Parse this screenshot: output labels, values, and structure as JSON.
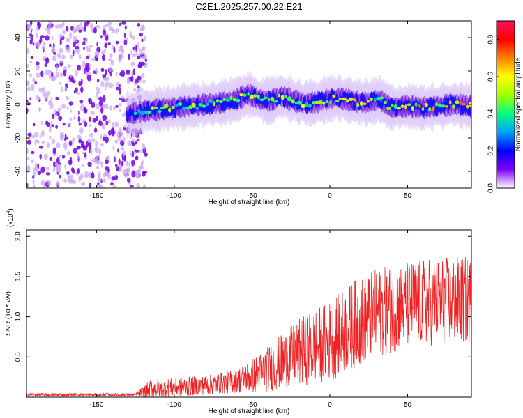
{
  "title": "C2E1.2025.257.00.22.E21",
  "chart_data": [
    {
      "type": "heatmap",
      "name": "spectrogram",
      "xlabel": "Height of straight line (km)",
      "ylabel": "Frequency (Hz)",
      "xlim": [
        -195,
        91
      ],
      "ylim": [
        -50,
        50
      ],
      "xticks": [
        -150,
        -100,
        -50,
        0,
        50
      ],
      "yticks": [
        -40,
        -20,
        0,
        20,
        40
      ],
      "xtick_labels": [
        "-150",
        "-100",
        "-50",
        "0",
        "50"
      ],
      "ytick_labels": [
        "-40",
        "-20",
        "0",
        "20",
        "40"
      ],
      "noise_region_x": [
        -195,
        -120
      ],
      "signal_center_hz": [
        {
          "x": -130,
          "y": -6
        },
        {
          "x": -120,
          "y": -4
        },
        {
          "x": -110,
          "y": -3
        },
        {
          "x": -100,
          "y": -2
        },
        {
          "x": -90,
          "y": -1
        },
        {
          "x": -80,
          "y": 0
        },
        {
          "x": -70,
          "y": 1
        },
        {
          "x": -60,
          "y": 3
        },
        {
          "x": -52,
          "y": 6
        },
        {
          "x": -45,
          "y": 3
        },
        {
          "x": -38,
          "y": 2
        },
        {
          "x": -32,
          "y": 5
        },
        {
          "x": -25,
          "y": 3
        },
        {
          "x": -18,
          "y": 1
        },
        {
          "x": -10,
          "y": 1
        },
        {
          "x": -2,
          "y": 3
        },
        {
          "x": 5,
          "y": 4
        },
        {
          "x": 15,
          "y": 2
        },
        {
          "x": 25,
          "y": 1
        },
        {
          "x": 32,
          "y": 3
        },
        {
          "x": 40,
          "y": -2
        },
        {
          "x": 50,
          "y": -1
        },
        {
          "x": 60,
          "y": -2
        },
        {
          "x": 70,
          "y": -1
        },
        {
          "x": 80,
          "y": 0
        },
        {
          "x": 91,
          "y": -1
        }
      ],
      "colorbar": {
        "label": "Normalized spectral amplitude",
        "range": [
          0,
          0.9
        ],
        "ticks": [
          0.0,
          0.2,
          0.4,
          0.6,
          0.8
        ],
        "tick_labels": [
          "0.0",
          "0.2",
          "0.4",
          "0.6",
          "0.8"
        ],
        "colors": [
          "#ffffff",
          "#7f00ff",
          "#0000ff",
          "#00a0ff",
          "#00ff80",
          "#a0ff00",
          "#ffff00",
          "#ff8000",
          "#ff0000",
          "#ff1060"
        ]
      }
    },
    {
      "type": "line",
      "name": "snr",
      "xlabel": "Height of straight line (km)",
      "ylabel": "SNR (10 * v/v)",
      "y_multiplier": "(x10",
      "y_multiplier_exp": "4",
      "y_multiplier_close": ")",
      "xlim": [
        -195,
        91
      ],
      "ylim": [
        0,
        2.08
      ],
      "xticks": [
        -150,
        -100,
        -50,
        0,
        50
      ],
      "yticks": [
        0.5,
        1.0,
        1.5,
        2.0
      ],
      "xtick_labels": [
        "-150",
        "-100",
        "-50",
        "0",
        "50"
      ],
      "ytick_labels": [
        "0.5",
        "1.0",
        "1.5",
        "2.0"
      ],
      "color": "#ee2222",
      "envelope": [
        {
          "x": -195,
          "base": 0.03,
          "amp": 0.02
        },
        {
          "x": -125,
          "base": 0.03,
          "amp": 0.02
        },
        {
          "x": -115,
          "base": 0.1,
          "amp": 0.12
        },
        {
          "x": -100,
          "base": 0.12,
          "amp": 0.12
        },
        {
          "x": -80,
          "base": 0.15,
          "amp": 0.12
        },
        {
          "x": -60,
          "base": 0.2,
          "amp": 0.15
        },
        {
          "x": -45,
          "base": 0.3,
          "amp": 0.25
        },
        {
          "x": -30,
          "base": 0.45,
          "amp": 0.35
        },
        {
          "x": -15,
          "base": 0.6,
          "amp": 0.45
        },
        {
          "x": 0,
          "base": 0.7,
          "amp": 0.5
        },
        {
          "x": 15,
          "base": 0.9,
          "amp": 0.55
        },
        {
          "x": 30,
          "base": 1.05,
          "amp": 0.55
        },
        {
          "x": 50,
          "base": 1.15,
          "amp": 0.55
        },
        {
          "x": 70,
          "base": 1.2,
          "amp": 0.55
        },
        {
          "x": 91,
          "base": 1.2,
          "amp": 0.55
        }
      ]
    }
  ]
}
